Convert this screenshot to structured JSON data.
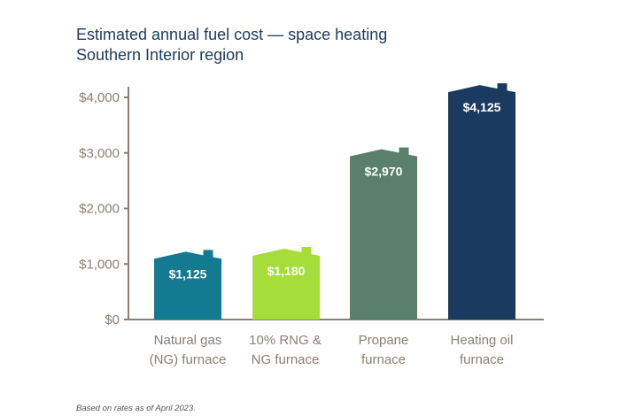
{
  "title_lines": [
    "Estimated annual fuel cost — space heating",
    "Southern Interior region"
  ],
  "footnote": "Based on rates as of April 2023.",
  "chart_data": {
    "type": "bar",
    "title": "Estimated annual fuel cost — space heating",
    "subtitle": "Southern Interior region",
    "categories": [
      [
        "Natural gas",
        "(NG) furnace"
      ],
      [
        "10% RNG &",
        "NG furnace"
      ],
      [
        "Propane",
        "furnace"
      ],
      [
        "Heating oil",
        "furnace"
      ]
    ],
    "values": [
      1125,
      1180,
      2970,
      4125
    ],
    "data_labels": [
      "$1,125",
      "$1,180",
      "$2,970",
      "$4,125"
    ],
    "bar_colors": [
      "#147a92",
      "#a6dd3a",
      "#5a7f6b",
      "#1b3a5f"
    ],
    "yticks": [
      0,
      1000,
      2000,
      3000,
      4000
    ],
    "ytick_labels": [
      "$0",
      "$1,000",
      "$2,000",
      "$3,000",
      "$4,000"
    ],
    "ylim": [
      0,
      4000
    ],
    "xlabel": "",
    "ylabel": "",
    "grid": false,
    "legend": "none",
    "axis_color": "#8a7f72"
  }
}
